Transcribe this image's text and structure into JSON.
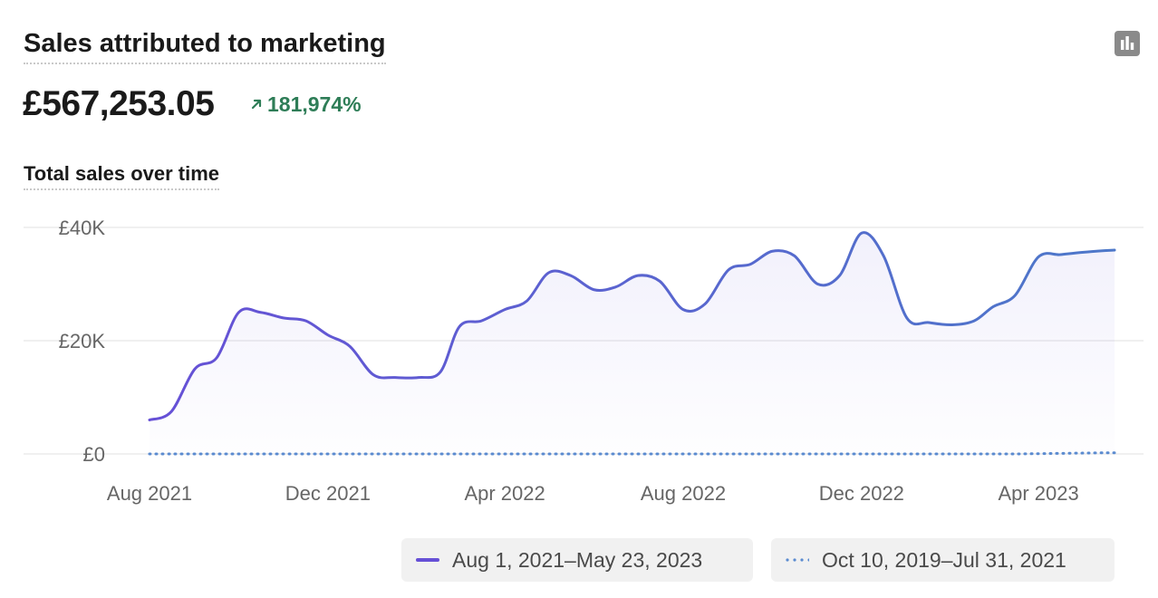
{
  "header": {
    "title": "Sales attributed to marketing",
    "icon": "bar-chart-icon"
  },
  "metric": {
    "value": "£567,253.05",
    "delta": "181,974%",
    "delta_direction": "up",
    "delta_color": "#2e7d57"
  },
  "chart_title": "Total sales over time",
  "legend": {
    "current_label": "Aug 1, 2021–May 23, 2023",
    "compare_label": "Oct 10, 2019–Jul 31, 2021"
  },
  "chart_data": {
    "type": "line",
    "title": "Total sales over time",
    "xlabel": "",
    "ylabel": "",
    "x_ticks": [
      "Aug 2021",
      "Dec 2021",
      "Apr 2022",
      "Aug 2022",
      "Dec 2022",
      "Apr 2023"
    ],
    "y_ticks": [
      "£0",
      "£20K",
      "£40K"
    ],
    "ylim": [
      0,
      40000
    ],
    "grid": true,
    "legend_position": "bottom-right",
    "x": [
      "2021-08-01",
      "2021-08-16",
      "2021-09-01",
      "2021-09-16",
      "2021-10-01",
      "2021-10-16",
      "2021-11-01",
      "2021-11-16",
      "2021-12-01",
      "2021-12-16",
      "2022-01-01",
      "2022-01-16",
      "2022-02-01",
      "2022-02-16",
      "2022-03-01",
      "2022-03-16",
      "2022-04-01",
      "2022-04-16",
      "2022-05-01",
      "2022-05-16",
      "2022-06-01",
      "2022-06-16",
      "2022-07-01",
      "2022-07-16",
      "2022-08-01",
      "2022-08-16",
      "2022-09-01",
      "2022-09-16",
      "2022-10-01",
      "2022-10-16",
      "2022-11-01",
      "2022-11-16",
      "2022-12-01",
      "2022-12-16",
      "2023-01-01",
      "2023-01-16",
      "2023-02-01",
      "2023-02-16",
      "2023-03-01",
      "2023-03-16",
      "2023-04-01",
      "2023-04-16",
      "2023-05-01",
      "2023-05-16",
      "2023-05-23"
    ],
    "series": [
      {
        "name": "Aug 1, 2021–May 23, 2023",
        "color_start": "#6650d6",
        "color_end": "#4d78c9",
        "style": "solid",
        "values": [
          6000,
          7500,
          15000,
          17000,
          25000,
          25000,
          24000,
          23500,
          21000,
          19000,
          14000,
          13500,
          13500,
          14500,
          22500,
          23500,
          25500,
          27000,
          32000,
          31500,
          29000,
          29500,
          31500,
          30500,
          25500,
          26500,
          32500,
          33500,
          35800,
          35000,
          30000,
          31500,
          39000,
          35000,
          24000,
          23200,
          22800,
          23500,
          26000,
          28000,
          34800,
          35200,
          35600,
          35900,
          36000
        ]
      },
      {
        "name": "Oct 10, 2019–Jul 31, 2021",
        "color": "#5b8bd0",
        "style": "dotted",
        "values": [
          0,
          0,
          0,
          0,
          0,
          0,
          0,
          0,
          0,
          0,
          0,
          0,
          0,
          0,
          0,
          0,
          0,
          0,
          0,
          0,
          0,
          0,
          0,
          0,
          0,
          0,
          0,
          0,
          0,
          0,
          0,
          0,
          0,
          0,
          0,
          0,
          0,
          0,
          0,
          0,
          50,
          100,
          150,
          200,
          200
        ]
      }
    ]
  }
}
